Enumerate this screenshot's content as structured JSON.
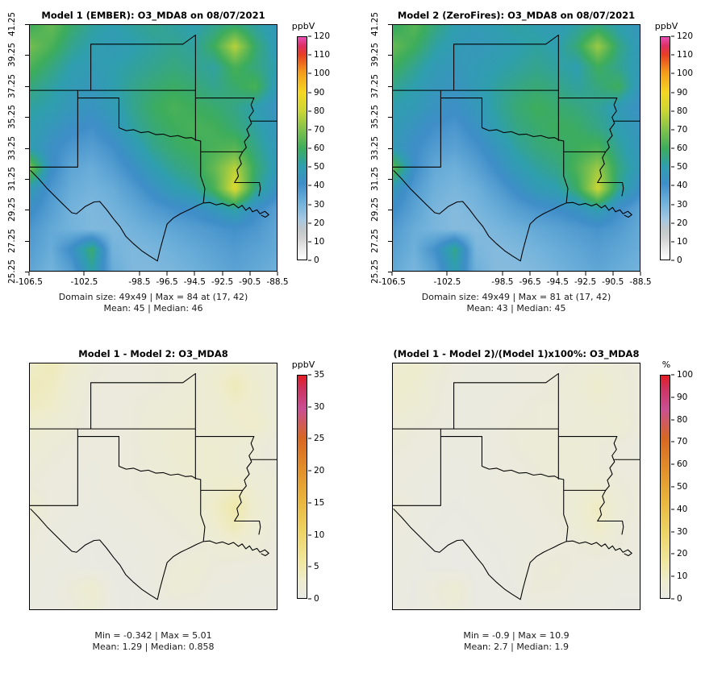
{
  "chart_data": {
    "type": "heatmap",
    "layout": "2x2 model comparison spatial plots",
    "axes": {
      "lon_min": -106.5,
      "lon_max": -88.5,
      "lat_min": 25.25,
      "lat_max": 41.25,
      "x_ticks": [
        -106.5,
        -102.5,
        -98.5,
        -96.5,
        -94.5,
        -92.5,
        -90.5,
        -88.5
      ],
      "y_ticks": [
        25.25,
        27.25,
        29.25,
        31.25,
        33.25,
        35.25,
        37.25,
        39.25,
        41.25
      ]
    },
    "scales": {
      "conc": {
        "unit": "ppbV",
        "min": 0,
        "max": 120,
        "ticks": [
          0,
          10,
          20,
          30,
          40,
          50,
          60,
          70,
          80,
          90,
          100,
          110,
          120
        ],
        "stops": [
          [
            0,
            "#ffffff"
          ],
          [
            0.05,
            "#e8e8e8"
          ],
          [
            0.1,
            "#cfcfcf"
          ],
          [
            0.14,
            "#bfc7cc"
          ],
          [
            0.18,
            "#a5c8e2"
          ],
          [
            0.26,
            "#6db0da"
          ],
          [
            0.34,
            "#3f8ec9"
          ],
          [
            0.42,
            "#2f9fae"
          ],
          [
            0.5,
            "#3dad5c"
          ],
          [
            0.59,
            "#86c34a"
          ],
          [
            0.67,
            "#ccd634"
          ],
          [
            0.75,
            "#f4d723"
          ],
          [
            0.84,
            "#f49d1b"
          ],
          [
            0.92,
            "#e83f22"
          ],
          [
            0.96,
            "#dd2f63"
          ],
          [
            1,
            "#e84fb4"
          ]
        ]
      },
      "diff": {
        "unit": "ppbV",
        "min": 0,
        "max": 35,
        "ticks": [
          0,
          5,
          10,
          15,
          20,
          25,
          30,
          35
        ],
        "stops": [
          [
            0,
            "#e9e9e5"
          ],
          [
            0.08,
            "#eeeccd"
          ],
          [
            0.16,
            "#f0e7a0"
          ],
          [
            0.3,
            "#edd364"
          ],
          [
            0.44,
            "#e9b53c"
          ],
          [
            0.58,
            "#e28e2a"
          ],
          [
            0.72,
            "#d76723"
          ],
          [
            0.85,
            "#c94f93"
          ],
          [
            0.94,
            "#cc3361"
          ],
          [
            1,
            "#e51d25"
          ]
        ]
      },
      "pct": {
        "unit": "%",
        "min": 0,
        "max": 100,
        "ticks": [
          0,
          10,
          20,
          30,
          40,
          50,
          60,
          70,
          80,
          90,
          100
        ],
        "stops": [
          [
            0,
            "#e9e9e5"
          ],
          [
            0.08,
            "#eeeccd"
          ],
          [
            0.16,
            "#f0e7a0"
          ],
          [
            0.3,
            "#edd364"
          ],
          [
            0.44,
            "#e9b53c"
          ],
          [
            0.58,
            "#e28e2a"
          ],
          [
            0.72,
            "#d76723"
          ],
          [
            0.85,
            "#c94f93"
          ],
          [
            0.94,
            "#cc3361"
          ],
          [
            1,
            "#e51d25"
          ]
        ]
      }
    },
    "panels": [
      {
        "id": "model1",
        "title": "Model 1 (EMBER): O3_MDA8 on 08/07/2021",
        "scale": "conc",
        "unit": "ppbV",
        "show_axes": true,
        "stats_line1": "Domain size: 49x49 | Max = 84 at (17, 42)",
        "stats_line2": "Mean: 45 |  Median: 46",
        "grid": [
          [
            60,
            66,
            58,
            52,
            50,
            52,
            54,
            52,
            50,
            54,
            58,
            52,
            47
          ],
          [
            68,
            62,
            54,
            50,
            48,
            50,
            52,
            54,
            52,
            60,
            78,
            58,
            48
          ],
          [
            62,
            56,
            50,
            48,
            50,
            52,
            54,
            56,
            54,
            52,
            62,
            56,
            50
          ],
          [
            56,
            52,
            48,
            46,
            50,
            54,
            57,
            59,
            57,
            54,
            58,
            62,
            48
          ],
          [
            52,
            50,
            46,
            44,
            48,
            54,
            59,
            62,
            60,
            58,
            55,
            50,
            44
          ],
          [
            50,
            46,
            42,
            40,
            45,
            52,
            57,
            60,
            62,
            61,
            57,
            52,
            46
          ],
          [
            49,
            42,
            38,
            36,
            40,
            47,
            54,
            58,
            60,
            62,
            64,
            55,
            47
          ],
          [
            68,
            42,
            34,
            32,
            36,
            42,
            49,
            54,
            57,
            66,
            78,
            58,
            48
          ],
          [
            48,
            38,
            32,
            30,
            32,
            37,
            43,
            49,
            52,
            62,
            84,
            56,
            44
          ],
          [
            42,
            36,
            30,
            28,
            30,
            33,
            37,
            40,
            42,
            46,
            52,
            42,
            36
          ],
          [
            38,
            33,
            30,
            28,
            28,
            30,
            32,
            34,
            36,
            38,
            40,
            38,
            34
          ],
          [
            36,
            32,
            42,
            58,
            30,
            28,
            29,
            31,
            33,
            35,
            37,
            35,
            33
          ],
          [
            34,
            30,
            36,
            52,
            32,
            28,
            28,
            29,
            31,
            33,
            35,
            33,
            31
          ]
        ]
      },
      {
        "id": "model2",
        "title": "Model 2 (ZeroFires): O3_MDA8 on 08/07/2021",
        "scale": "conc",
        "unit": "ppbV",
        "show_axes": true,
        "stats_line1": "Domain size: 49x49 | Max = 81 at (17, 42)",
        "stats_line2": "Mean: 43 |  Median: 45",
        "grid": [
          [
            58,
            64,
            56,
            50,
            48,
            50,
            52,
            50,
            48,
            52,
            56,
            50,
            46
          ],
          [
            66,
            60,
            52,
            48,
            46,
            48,
            50,
            52,
            50,
            57,
            74,
            56,
            47
          ],
          [
            60,
            54,
            48,
            46,
            48,
            50,
            52,
            54,
            52,
            50,
            60,
            54,
            48
          ],
          [
            54,
            50,
            46,
            44,
            48,
            52,
            55,
            57,
            55,
            52,
            56,
            60,
            46
          ],
          [
            50,
            48,
            44,
            42,
            46,
            52,
            57,
            60,
            58,
            56,
            53,
            48,
            43
          ],
          [
            48,
            44,
            40,
            38,
            43,
            50,
            55,
            58,
            60,
            59,
            55,
            50,
            45
          ],
          [
            47,
            41,
            37,
            35,
            39,
            45,
            52,
            56,
            58,
            60,
            62,
            53,
            46
          ],
          [
            65,
            41,
            33,
            31,
            35,
            41,
            48,
            52,
            55,
            63,
            74,
            56,
            47
          ],
          [
            46,
            37,
            31,
            29,
            31,
            36,
            42,
            48,
            50,
            59,
            81,
            54,
            43
          ],
          [
            41,
            35,
            29,
            27,
            29,
            32,
            36,
            39,
            41,
            44,
            50,
            41,
            35
          ],
          [
            37,
            32,
            29,
            27,
            27,
            29,
            31,
            33,
            35,
            37,
            39,
            37,
            33
          ],
          [
            35,
            31,
            40,
            55,
            29,
            27,
            28,
            30,
            32,
            34,
            36,
            34,
            32
          ],
          [
            33,
            29,
            35,
            50,
            31,
            27,
            27,
            28,
            30,
            32,
            34,
            32,
            30
          ]
        ]
      },
      {
        "id": "difference",
        "title": "Model 1 - Model 2: O3_MDA8",
        "scale": "diff",
        "unit": "ppbV",
        "show_axes": false,
        "stats_line1": "Min = -0.342 | Max = 5.01",
        "stats_line2": "Mean: 1.29 |  Median: 0.858",
        "grid": [
          [
            3,
            4,
            2.5,
            1.5,
            1,
            1,
            1.2,
            1.5,
            1.5,
            2,
            2.5,
            2,
            1.5
          ],
          [
            4,
            3.5,
            2,
            1.2,
            1,
            1,
            1.2,
            1.5,
            1.8,
            2.5,
            4,
            2.5,
            1.5
          ],
          [
            3.5,
            3,
            1.8,
            1,
            1,
            1.2,
            1.5,
            1.8,
            2,
            2,
            3,
            2.5,
            1.5
          ],
          [
            2.5,
            2,
            1.5,
            1,
            1,
            1.2,
            1.8,
            2,
            2.2,
            2,
            2.5,
            3,
            1.5
          ],
          [
            2,
            1.5,
            1.2,
            1,
            1,
            1.2,
            1.8,
            2.2,
            2.5,
            2.5,
            2,
            1.5,
            1
          ],
          [
            1.5,
            1.2,
            1,
            0.8,
            1,
            1.2,
            1.5,
            2,
            2.5,
            2.5,
            2,
            1.5,
            1.2
          ],
          [
            1.2,
            1,
            0.8,
            0.8,
            1,
            1.2,
            1.5,
            1.8,
            2,
            2.5,
            3,
            2,
            1.5
          ],
          [
            2.5,
            1,
            0.8,
            0.6,
            0.8,
            1,
            1.2,
            1.5,
            2,
            3,
            5,
            2.5,
            1.5
          ],
          [
            1.5,
            0.8,
            0.6,
            0.5,
            0.6,
            0.8,
            1,
            1.2,
            1.5,
            2.5,
            4,
            2,
            1.2
          ],
          [
            1,
            0.8,
            0.5,
            0.4,
            0.5,
            0.6,
            0.8,
            1,
            1.2,
            1.5,
            2,
            1.5,
            1
          ],
          [
            0.8,
            0.6,
            0.5,
            0.4,
            0.4,
            0.5,
            0.8,
            1.5,
            2,
            1.2,
            1,
            0.8,
            0.8
          ],
          [
            0.8,
            0.5,
            1.5,
            2.5,
            0.5,
            0.4,
            0.6,
            1.8,
            1.5,
            0.8,
            0.8,
            0.6,
            0.6
          ],
          [
            0.6,
            0.5,
            1,
            2,
            0.5,
            0.4,
            0.5,
            0.8,
            0.8,
            0.6,
            0.6,
            0.5,
            0.5
          ]
        ]
      },
      {
        "id": "percent-difference",
        "title": "(Model 1 - Model 2)/(Model 1)x100%: O3_MDA8",
        "scale": "pct",
        "unit": "%",
        "show_axes": false,
        "stats_line1": "Min = -0.9 | Max = 10.9",
        "stats_line2": "Mean: 2.7 |  Median: 1.9",
        "grid": [
          [
            6,
            8,
            5,
            3,
            2,
            2,
            2.5,
            3,
            3,
            4,
            5,
            4,
            3
          ],
          [
            8,
            7,
            4,
            2.5,
            2,
            2,
            2.5,
            3,
            4,
            5,
            8,
            5,
            3
          ],
          [
            7,
            6,
            4,
            2,
            2,
            2.5,
            3,
            4,
            4,
            4,
            6,
            5,
            3
          ],
          [
            5,
            4,
            3,
            2,
            2,
            2.5,
            4,
            4,
            4,
            4,
            5,
            6,
            3
          ],
          [
            4,
            3,
            2.5,
            2,
            2,
            2.5,
            4,
            4.5,
            5,
            5,
            4,
            3,
            2
          ],
          [
            3,
            2.5,
            2,
            1.5,
            2,
            2.5,
            3,
            4,
            5,
            5,
            4,
            3,
            2.5
          ],
          [
            2.5,
            2,
            1.5,
            1.5,
            2,
            2.5,
            3,
            3.5,
            4,
            5,
            6,
            4,
            3
          ],
          [
            5,
            2,
            1.5,
            1.2,
            1.5,
            2,
            2.5,
            3,
            4,
            6,
            10,
            5,
            3
          ],
          [
            3,
            1.8,
            1.2,
            1,
            1.2,
            1.8,
            2.2,
            2.5,
            3,
            5,
            9,
            4,
            2.5
          ],
          [
            2.5,
            1.8,
            1,
            0.8,
            1,
            1.3,
            1.8,
            2.5,
            3,
            3.5,
            4.5,
            3.5,
            2.5
          ],
          [
            2,
            1.5,
            1,
            0.8,
            0.8,
            1,
            1.8,
            3.5,
            4.5,
            3,
            2.5,
            2,
            2
          ],
          [
            2,
            1.2,
            3.5,
            6,
            1,
            0.8,
            1.3,
            4,
            3.5,
            2,
            2,
            1.5,
            1.5
          ],
          [
            1.5,
            1.2,
            2.5,
            4.5,
            1,
            0.8,
            1,
            1.8,
            1.8,
            1.5,
            1.5,
            1.2,
            1.2
          ]
        ]
      }
    ]
  }
}
